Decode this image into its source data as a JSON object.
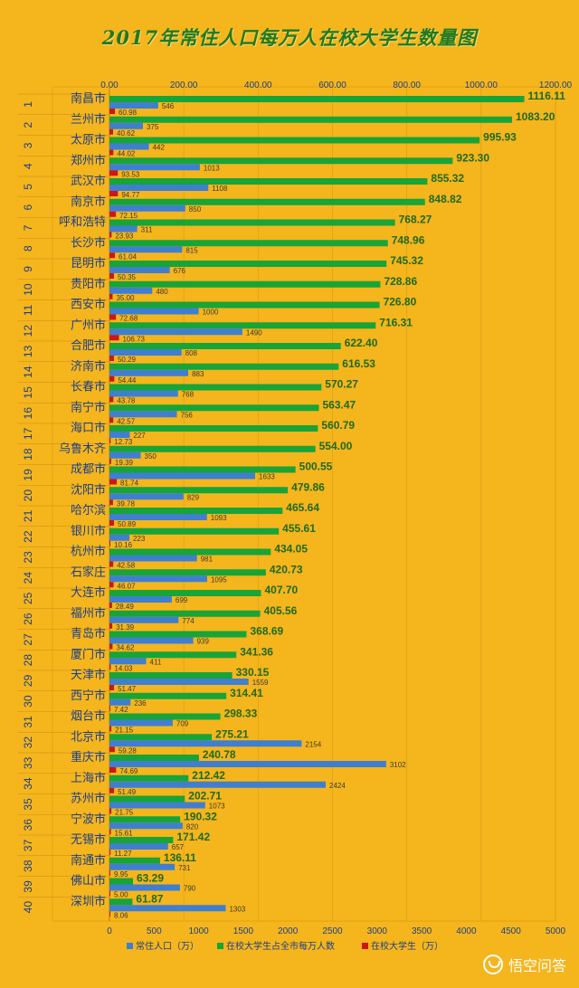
{
  "chart_data": {
    "type": "bar",
    "title": "2017年常住人口每万人在校大学生数量图",
    "top_axis": {
      "range": [
        0,
        1200
      ],
      "ticks": [
        "0.00",
        "200.00",
        "400.00",
        "600.00",
        "800.00",
        "1000.00",
        "1200.00"
      ]
    },
    "bottom_axis": {
      "range": [
        0,
        5000
      ],
      "ticks": [
        "0",
        "500",
        "1000",
        "1500",
        "2000",
        "2500",
        "3000",
        "3500",
        "4000",
        "4500",
        "5000"
      ]
    },
    "grid": true,
    "legend_position": "bottom",
    "ranks": [
      "1",
      "2",
      "3",
      "4",
      "5",
      "6",
      "7",
      "8",
      "9",
      "10",
      "11",
      "12",
      "13",
      "14",
      "15",
      "16",
      "17",
      "18",
      "19",
      "20",
      "21",
      "22",
      "23",
      "24",
      "25",
      "26",
      "27",
      "28",
      "29",
      "30",
      "31",
      "32",
      "33",
      "34",
      "35",
      "36",
      "37",
      "38",
      "39",
      "40"
    ],
    "categories": [
      "南昌市",
      "兰州市",
      "太原市",
      "郑州市",
      "武汉市",
      "南京市",
      "呼和浩特",
      "长沙市",
      "昆明市",
      "贵阳市",
      "西安市",
      "广州市",
      "合肥市",
      "济南市",
      "长春市",
      "南宁市",
      "海口市",
      "乌鲁木齐",
      "成都市",
      "沈阳市",
      "哈尔滨",
      "银川市",
      "杭州市",
      "石家庄",
      "大连市",
      "福州市",
      "青岛市",
      "厦门市",
      "天津市",
      "西宁市",
      "烟台市",
      "北京市",
      "重庆市",
      "上海市",
      "苏州市",
      "宁波市",
      "无锡市",
      "南通市",
      "佛山市",
      "深圳市"
    ],
    "series": [
      {
        "name": "在校大学生占全市每万人数",
        "axis": "top",
        "color": "#18a437",
        "values": [
          1116.11,
          1083.2,
          995.93,
          923.3,
          855.32,
          848.82,
          768.27,
          748.96,
          745.32,
          728.86,
          726.8,
          716.31,
          622.4,
          616.53,
          570.27,
          563.47,
          560.79,
          554.0,
          500.55,
          479.86,
          465.64,
          455.61,
          434.05,
          420.73,
          407.7,
          405.56,
          368.69,
          341.36,
          330.15,
          314.41,
          298.33,
          275.21,
          240.78,
          212.42,
          202.71,
          190.32,
          171.42,
          136.11,
          63.29,
          61.87
        ],
        "labels": [
          "1116.11",
          "1083.20",
          "995.93",
          "923.30",
          "855.32",
          "848.82",
          "768.27",
          "748.96",
          "745.32",
          "728.86",
          "726.80",
          "716.31",
          "622.40",
          "616.53",
          "570.27",
          "563.47",
          "560.79",
          "554.00",
          "500.55",
          "479.86",
          "465.64",
          "455.61",
          "434.05",
          "420.73",
          "407.70",
          "405.56",
          "368.69",
          "341.36",
          "330.15",
          "314.41",
          "298.33",
          "275.21",
          "240.78",
          "212.42",
          "202.71",
          "190.32",
          "171.42",
          "136.11",
          "63.29",
          "61.87"
        ]
      },
      {
        "name": "常住人口（万）",
        "axis": "bottom",
        "color": "#3f7fd0",
        "values": [
          546,
          375,
          442,
          1013,
          1108,
          850,
          311,
          815,
          676,
          480,
          1000,
          1490,
          808,
          883,
          768,
          756,
          227,
          350,
          1633,
          829,
          1093,
          223,
          981,
          1095,
          699,
          774,
          939,
          411,
          1559,
          236,
          709,
          2154,
          3102,
          2424,
          1073,
          820,
          657,
          731,
          790,
          1303
        ],
        "labels": [
          "546",
          "375",
          "442",
          "1013",
          "1108",
          "850",
          "311",
          "815",
          "676",
          "480",
          "1000",
          "1490",
          "808",
          "883",
          "768",
          "756",
          "227",
          "350",
          "1633",
          "829",
          "1093",
          "223",
          "981",
          "1095",
          "699",
          "774",
          "939",
          "411",
          "1559",
          "236",
          "709",
          "2154",
          "3102",
          "2424",
          "1073",
          "820",
          "657",
          "731",
          "790",
          "1303"
        ]
      },
      {
        "name": "在校大学生（万）",
        "axis": "bottom",
        "color": "#d01515",
        "values": [
          60.98,
          40.62,
          44.02,
          93.53,
          94.77,
          72.15,
          23.93,
          61.04,
          50.35,
          35.0,
          72.68,
          106.73,
          50.29,
          54.44,
          43.78,
          42.57,
          12.73,
          19.39,
          81.74,
          39.78,
          50.89,
          10.16,
          42.58,
          46.07,
          28.49,
          31.39,
          34.62,
          14.03,
          51.47,
          7.42,
          21.15,
          59.28,
          74.69,
          51.49,
          21.75,
          15.61,
          11.27,
          9.95,
          5.0,
          8.06
        ],
        "labels": [
          "60.98",
          "40.62",
          "44.02",
          "93.53",
          "94.77",
          "72.15",
          "23.93",
          "61.04",
          "50.35",
          "35.00",
          "72.68",
          "106.73",
          "50.29",
          "54.44",
          "43.78",
          "42.57",
          "12.73",
          "19.39",
          "81.74",
          "39.78",
          "50.89",
          "10.16",
          "42.58",
          "46.07",
          "28.49",
          "31.39",
          "34.62",
          "14.03",
          "51.47",
          "7.42",
          "21.15",
          "59.28",
          "74.69",
          "51.49",
          "21.75",
          "15.61",
          "11.27",
          "9.95",
          "5.00",
          "8.06"
        ]
      }
    ],
    "legend": [
      "常住人口（万）",
      "在校大学生占全市每万人数",
      "在校大学生（万）"
    ]
  },
  "watermark": {
    "text": "悟空问答",
    "icon": "wukong-logo-icon"
  }
}
